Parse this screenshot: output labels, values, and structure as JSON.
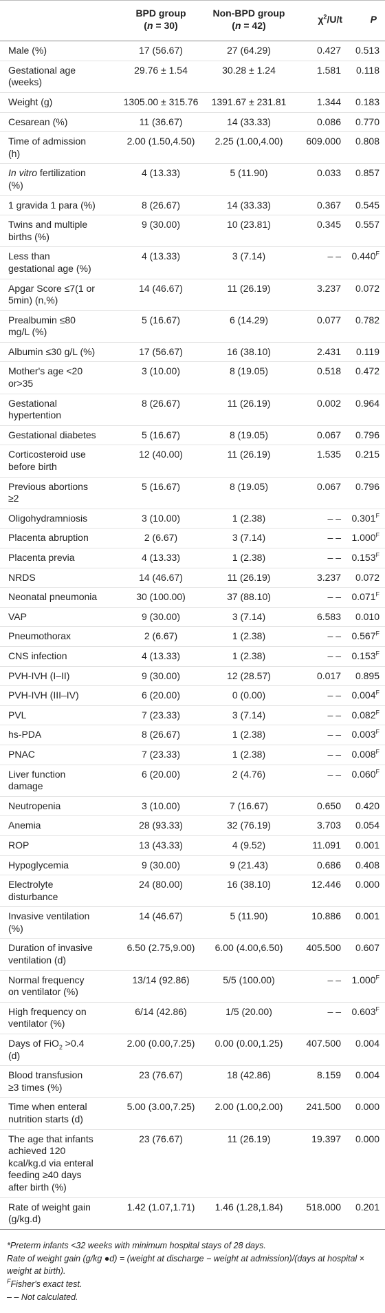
{
  "table": {
    "header": [
      [
        [
          "BPD group"
        ],
        [
          "(",
          {
            "i": "n"
          },
          " = 30)"
        ]
      ],
      [
        [
          "Non-BPD group"
        ],
        [
          "(",
          {
            "i": "n"
          },
          " = 42)"
        ]
      ],
      [
        [
          "χ",
          {
            "sup": "2"
          },
          "/U/t"
        ]
      ],
      [
        [
          {
            "i": "P"
          }
        ]
      ]
    ],
    "rows": [
      [
        [
          "Male (%)"
        ],
        "17 (56.67)",
        "27 (64.29)",
        "0.427",
        "0.513"
      ],
      [
        [
          "Gestational age",
          "(weeks)"
        ],
        "29.76 ± 1.54",
        "30.28 ± 1.24",
        "1.581",
        "0.118"
      ],
      [
        [
          "Weight (g)"
        ],
        "1305.00 ± 315.76",
        "1391.67 ± 231.81",
        "1.344",
        "0.183"
      ],
      [
        [
          "Cesarean (%)"
        ],
        "11 (36.67)",
        "14 (33.33)",
        "0.086",
        "0.770"
      ],
      [
        [
          "Time of admission",
          "(h)"
        ],
        "2.00 (1.50,4.50)",
        "2.25 (1.00,4.00)",
        "609.000",
        "0.808"
      ],
      [
        [
          [
            {
              "i": "In vitro"
            },
            " fertilization"
          ],
          "(%)"
        ],
        "4 (13.33)",
        "5 (11.90)",
        "0.033",
        "0.857"
      ],
      [
        [
          "1 gravida 1 para (%)"
        ],
        "8 (26.67)",
        "14 (33.33)",
        "0.367",
        "0.545"
      ],
      [
        [
          "Twins and multiple",
          "births (%)"
        ],
        "9 (30.00)",
        "10 (23.81)",
        "0.345",
        "0.557"
      ],
      [
        [
          "Less than",
          "gestational age (%)"
        ],
        "4 (13.33)",
        "3 (7.14)",
        "– –",
        [
          "0.440",
          {
            "sup": "F"
          }
        ]
      ],
      [
        [
          "Apgar Score ≤7(1 or",
          "5min) (n,%)"
        ],
        "14 (46.67)",
        "11 (26.19)",
        "3.237",
        "0.072"
      ],
      [
        [
          "Prealbumin ≤80",
          "mg/L (%)"
        ],
        "5 (16.67)",
        "6 (14.29)",
        "0.077",
        "0.782"
      ],
      [
        [
          "Albumin ≤30 g/L (%)"
        ],
        "17 (56.67)",
        "16 (38.10)",
        "2.431",
        "0.119"
      ],
      [
        [
          "Mother's age <20",
          "or>35"
        ],
        "3 (10.00)",
        "8 (19.05)",
        "0.518",
        "0.472"
      ],
      [
        [
          "Gestational",
          "hypertention"
        ],
        "8 (26.67)",
        "11 (26.19)",
        "0.002",
        "0.964"
      ],
      [
        [
          "Gestational diabetes"
        ],
        "5 (16.67)",
        "8 (19.05)",
        "0.067",
        "0.796"
      ],
      [
        [
          "Corticosteroid use",
          "before birth"
        ],
        "12 (40.00)",
        "11 (26.19)",
        "1.535",
        "0.215"
      ],
      [
        [
          "Previous abortions",
          "≥2"
        ],
        "5 (16.67)",
        "8 (19.05)",
        "0.067",
        "0.796"
      ],
      [
        [
          "Oligohydramniosis"
        ],
        "3 (10.00)",
        "1 (2.38)",
        "– –",
        [
          "0.301",
          {
            "sup": "F"
          }
        ]
      ],
      [
        [
          "Placenta abruption"
        ],
        "2 (6.67)",
        "3 (7.14)",
        "– –",
        [
          "1.000",
          {
            "sup": "F"
          }
        ]
      ],
      [
        [
          "Placenta previa"
        ],
        "4 (13.33)",
        "1 (2.38)",
        "– –",
        [
          "0.153",
          {
            "sup": "F"
          }
        ]
      ],
      [
        [
          "NRDS"
        ],
        "14 (46.67)",
        "11 (26.19)",
        "3.237",
        "0.072"
      ],
      [
        [
          "Neonatal pneumonia"
        ],
        "30 (100.00)",
        "37 (88.10)",
        "– –",
        [
          "0.071",
          {
            "sup": "F"
          }
        ]
      ],
      [
        [
          "VAP"
        ],
        "9 (30.00)",
        "3 (7.14)",
        "6.583",
        "0.010"
      ],
      [
        [
          "Pneumothorax"
        ],
        "2 (6.67)",
        "1 (2.38)",
        "– –",
        [
          "0.567",
          {
            "sup": "F"
          }
        ]
      ],
      [
        [
          "CNS infection"
        ],
        "4 (13.33)",
        "1 (2.38)",
        "– –",
        [
          "0.153",
          {
            "sup": "F"
          }
        ]
      ],
      [
        [
          "PVH-IVH (I–II)"
        ],
        "9 (30.00)",
        "12 (28.57)",
        "0.017",
        "0.895"
      ],
      [
        [
          "PVH-IVH (III–IV)"
        ],
        "6 (20.00)",
        "0 (0.00)",
        "– –",
        [
          "0.004",
          {
            "sup": "F"
          }
        ]
      ],
      [
        [
          "PVL"
        ],
        "7 (23.33)",
        "3 (7.14)",
        "– –",
        [
          "0.082",
          {
            "sup": "F"
          }
        ]
      ],
      [
        [
          "hs-PDA"
        ],
        "8 (26.67)",
        "1 (2.38)",
        "– –",
        [
          "0.003",
          {
            "sup": "F"
          }
        ]
      ],
      [
        [
          "PNAC"
        ],
        "7 (23.33)",
        "1 (2.38)",
        "– –",
        [
          "0.008",
          {
            "sup": "F"
          }
        ]
      ],
      [
        [
          "Liver function",
          "damage"
        ],
        "6 (20.00)",
        "2 (4.76)",
        "– –",
        [
          "0.060",
          {
            "sup": "F"
          }
        ]
      ],
      [
        [
          "Neutropenia"
        ],
        "3 (10.00)",
        "7 (16.67)",
        "0.650",
        "0.420"
      ],
      [
        [
          "Anemia"
        ],
        "28 (93.33)",
        "32 (76.19)",
        "3.703",
        "0.054"
      ],
      [
        [
          "ROP"
        ],
        "13 (43.33)",
        "4 (9.52)",
        "11.091",
        "0.001"
      ],
      [
        [
          "Hypoglycemia"
        ],
        "9 (30.00)",
        "9 (21.43)",
        "0.686",
        "0.408"
      ],
      [
        [
          "Electrolyte",
          "disturbance"
        ],
        "24 (80.00)",
        "16 (38.10)",
        "12.446",
        "0.000"
      ],
      [
        [
          "Invasive ventilation",
          "(%)"
        ],
        "14 (46.67)",
        "5 (11.90)",
        "10.886",
        "0.001"
      ],
      [
        [
          "Duration of invasive",
          "ventilation (d)"
        ],
        "6.50 (2.75,9.00)",
        "6.00 (4.00,6.50)",
        "405.500",
        "0.607"
      ],
      [
        [
          "Normal frequency",
          "on ventilator (%)"
        ],
        "13/14 (92.86)",
        "5/5 (100.00)",
        "– –",
        [
          "1.000",
          {
            "sup": "F"
          }
        ]
      ],
      [
        [
          "High frequency on",
          "ventilator (%)"
        ],
        "6/14 (42.86)",
        "1/5 (20.00)",
        "– –",
        [
          "0.603",
          {
            "sup": "F"
          }
        ]
      ],
      [
        [
          [
            "Days of FiO",
            {
              "sub": "2"
            },
            " >0.4"
          ],
          "(d)"
        ],
        "2.00 (0.00,7.25)",
        "0.00 (0.00,1.25)",
        "407.500",
        "0.004"
      ],
      [
        [
          "Blood transfusion",
          "≥3 times (%)"
        ],
        "23 (76.67)",
        "18 (42.86)",
        "8.159",
        "0.004"
      ],
      [
        [
          "Time when enteral",
          "nutrition starts (d)"
        ],
        "5.00 (3.00,7.25)",
        "2.00 (1.00,2.00)",
        "241.500",
        "0.000"
      ],
      [
        [
          "The age that infants",
          "achieved 120",
          "kcal/kg.d via enteral",
          "feeding ≥40 days",
          "after birth (%)"
        ],
        "23 (76.67)",
        "11 (26.19)",
        "19.397",
        "0.000"
      ],
      [
        [
          "Rate of weight gain",
          "(g/kg.d)"
        ],
        "1.42 (1.07,1.71)",
        "1.46 (1.28,1.84)",
        "518.000",
        "0.201"
      ]
    ]
  },
  "footnotes": [
    "*Preterm infants <32 weeks with minimum hospital stays of 28 days.",
    "Rate of weight gain (g/kg ●d) = (weight at discharge − weight at admission)/(days at hospital × weight at birth).",
    [
      {
        "sup": "F"
      },
      "Fisher's exact test."
    ],
    "– – Not calculated."
  ]
}
